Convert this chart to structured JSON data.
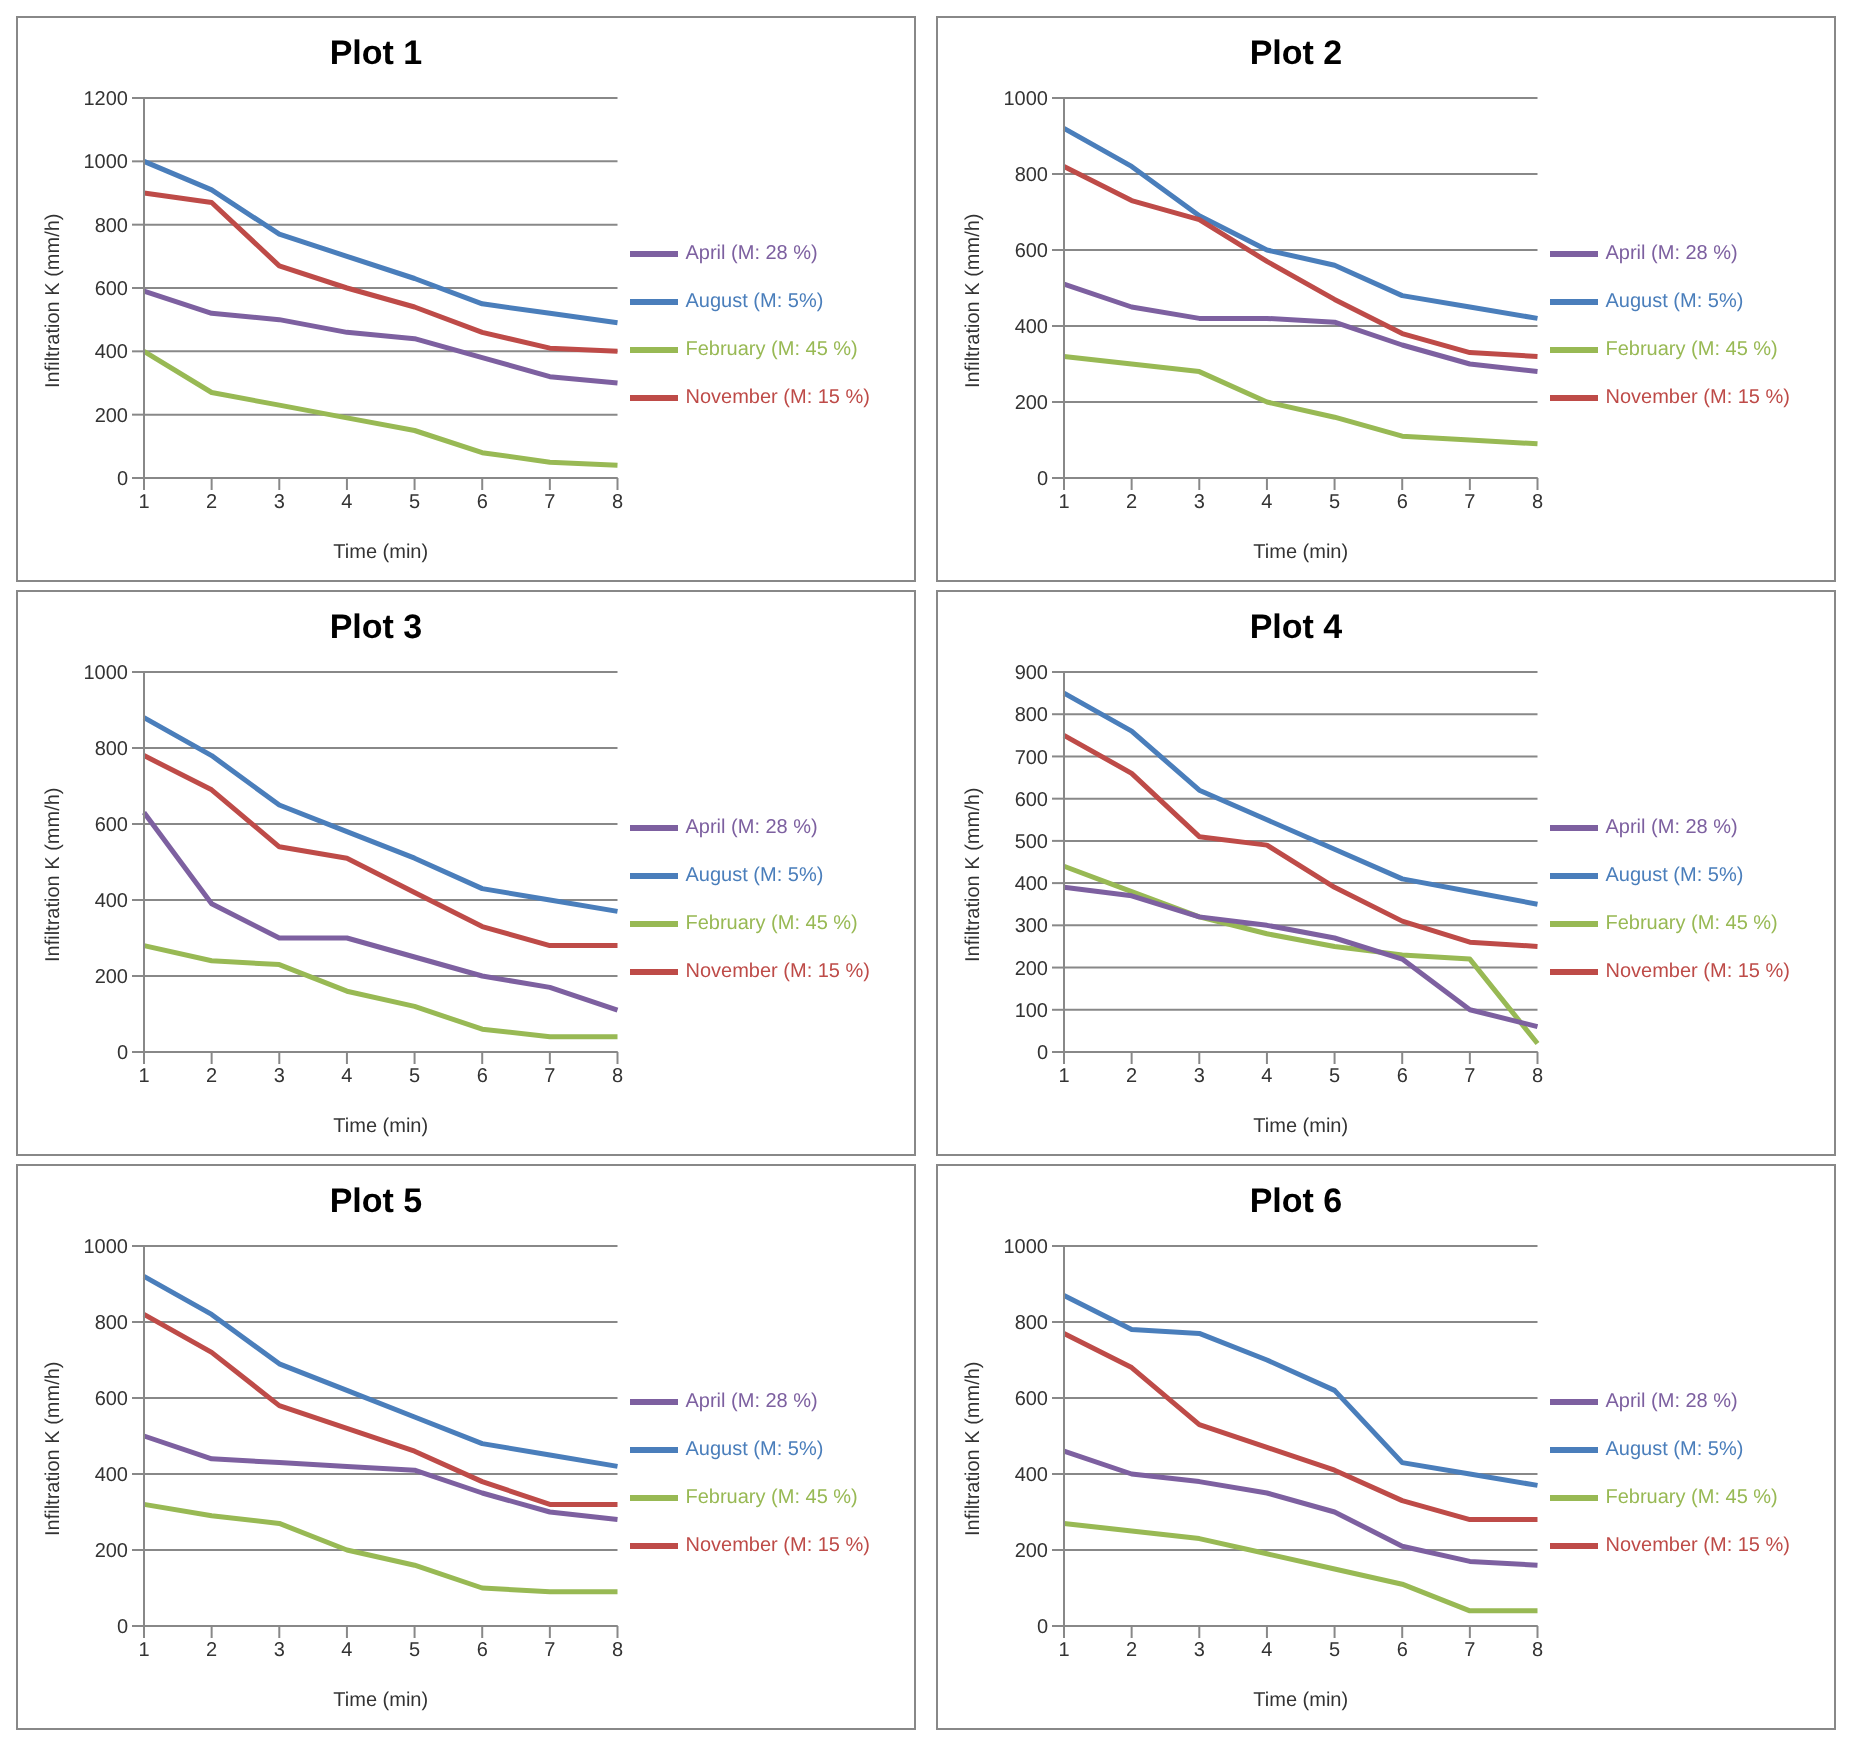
{
  "chart_data": [
    {
      "type": "line",
      "title": "Plot 1",
      "xlabel": "Time (min)",
      "ylabel": "Infiltration K (mm/h)",
      "categories": [
        "1",
        "2",
        "3",
        "4",
        "5",
        "6",
        "7",
        "8"
      ],
      "ylim": [
        0,
        1200
      ],
      "yticks": [
        0,
        200,
        400,
        600,
        800,
        1000,
        1200
      ],
      "grid": "y",
      "legend": "right",
      "series": [
        {
          "name": "August (M: 5%)",
          "color": "#4a7ebb",
          "values": [
            1000,
            910,
            770,
            700,
            630,
            550,
            520,
            490
          ]
        },
        {
          "name": "November (M: 15 %)",
          "color": "#be4b48",
          "values": [
            900,
            870,
            670,
            600,
            540,
            460,
            410,
            400
          ]
        },
        {
          "name": "February (M: 45 %)",
          "color": "#98b954",
          "values": [
            400,
            270,
            230,
            190,
            150,
            80,
            50,
            40
          ]
        },
        {
          "name": "April (M: 28 %)",
          "color": "#7d60a0",
          "values": [
            590,
            520,
            500,
            460,
            440,
            380,
            320,
            300
          ]
        }
      ]
    },
    {
      "type": "line",
      "title": "Plot 2",
      "xlabel": "Time (min)",
      "ylabel": "Infiltration K (mm/h)",
      "categories": [
        "1",
        "2",
        "3",
        "4",
        "5",
        "6",
        "7",
        "8"
      ],
      "ylim": [
        0,
        1000
      ],
      "yticks": [
        0,
        200,
        400,
        600,
        800,
        1000
      ],
      "grid": "y",
      "legend": "right",
      "series": [
        {
          "name": "August (M: 5%)",
          "color": "#4a7ebb",
          "values": [
            920,
            820,
            690,
            600,
            560,
            480,
            450,
            420
          ]
        },
        {
          "name": "November (M: 15 %)",
          "color": "#be4b48",
          "values": [
            820,
            730,
            680,
            570,
            470,
            380,
            330,
            320
          ]
        },
        {
          "name": "February (M: 45 %)",
          "color": "#98b954",
          "values": [
            320,
            300,
            280,
            200,
            160,
            110,
            100,
            90
          ]
        },
        {
          "name": "April (M: 28 %)",
          "color": "#7d60a0",
          "values": [
            510,
            450,
            420,
            420,
            410,
            350,
            300,
            280
          ]
        }
      ]
    },
    {
      "type": "line",
      "title": "Plot 3",
      "xlabel": "Time (min)",
      "ylabel": "Infiltration K (mm/h)",
      "categories": [
        "1",
        "2",
        "3",
        "4",
        "5",
        "6",
        "7",
        "8"
      ],
      "ylim": [
        0,
        1000
      ],
      "yticks": [
        0,
        200,
        400,
        600,
        800,
        1000
      ],
      "grid": "y",
      "legend": "right",
      "series": [
        {
          "name": "August (M: 5%)",
          "color": "#4a7ebb",
          "values": [
            880,
            780,
            650,
            580,
            510,
            430,
            400,
            370
          ]
        },
        {
          "name": "November (M: 15 %)",
          "color": "#be4b48",
          "values": [
            780,
            690,
            540,
            510,
            420,
            330,
            280,
            280
          ]
        },
        {
          "name": "February (M: 45 %)",
          "color": "#98b954",
          "values": [
            280,
            240,
            230,
            160,
            120,
            60,
            40,
            40
          ]
        },
        {
          "name": "April (M: 28 %)",
          "color": "#7d60a0",
          "values": [
            630,
            390,
            300,
            300,
            250,
            200,
            170,
            110
          ]
        }
      ]
    },
    {
      "type": "line",
      "title": "Plot 4",
      "xlabel": "Time (min)",
      "ylabel": "Infiltration K (mm/h)",
      "categories": [
        "1",
        "2",
        "3",
        "4",
        "5",
        "6",
        "7",
        "8"
      ],
      "ylim": [
        0,
        900
      ],
      "yticks": [
        0,
        100,
        200,
        300,
        400,
        500,
        600,
        700,
        800,
        900
      ],
      "grid": "y",
      "legend": "right",
      "series": [
        {
          "name": "August (M: 5%)",
          "color": "#4a7ebb",
          "values": [
            850,
            760,
            620,
            550,
            480,
            410,
            380,
            350
          ]
        },
        {
          "name": "November (M: 15 %)",
          "color": "#be4b48",
          "values": [
            750,
            660,
            510,
            490,
            390,
            310,
            260,
            250
          ]
        },
        {
          "name": "February (M: 45 %)",
          "color": "#98b954",
          "values": [
            440,
            380,
            320,
            280,
            250,
            230,
            220,
            20
          ]
        },
        {
          "name": "April (M: 28 %)",
          "color": "#7d60a0",
          "values": [
            390,
            370,
            320,
            300,
            270,
            220,
            100,
            60
          ]
        }
      ]
    },
    {
      "type": "line",
      "title": "Plot 5",
      "xlabel": "Time (min)",
      "ylabel": "Infiltration K (mm/h)",
      "categories": [
        "1",
        "2",
        "3",
        "4",
        "5",
        "6",
        "7",
        "8"
      ],
      "ylim": [
        0,
        1000
      ],
      "yticks": [
        0,
        200,
        400,
        600,
        800,
        1000
      ],
      "grid": "y",
      "legend": "right",
      "series": [
        {
          "name": "August (M: 5%)",
          "color": "#4a7ebb",
          "values": [
            920,
            820,
            690,
            620,
            550,
            480,
            450,
            420
          ]
        },
        {
          "name": "November (M: 15 %)",
          "color": "#be4b48",
          "values": [
            820,
            720,
            580,
            520,
            460,
            380,
            320,
            320
          ]
        },
        {
          "name": "February (M: 45 %)",
          "color": "#98b954",
          "values": [
            320,
            290,
            270,
            200,
            160,
            100,
            90,
            90
          ]
        },
        {
          "name": "April (M: 28 %)",
          "color": "#7d60a0",
          "values": [
            500,
            440,
            430,
            420,
            410,
            350,
            300,
            280
          ]
        }
      ]
    },
    {
      "type": "line",
      "title": "Plot 6",
      "xlabel": "Time (min)",
      "ylabel": "Infiltration K (mm/h)",
      "categories": [
        "1",
        "2",
        "3",
        "4",
        "5",
        "6",
        "7",
        "8"
      ],
      "ylim": [
        0,
        1000
      ],
      "yticks": [
        0,
        200,
        400,
        600,
        800,
        1000
      ],
      "grid": "y",
      "legend": "right",
      "series": [
        {
          "name": "August (M: 5%)",
          "color": "#4a7ebb",
          "values": [
            870,
            780,
            770,
            700,
            620,
            430,
            400,
            370
          ]
        },
        {
          "name": "November (M: 15 %)",
          "color": "#be4b48",
          "values": [
            770,
            680,
            530,
            470,
            410,
            330,
            280,
            280
          ]
        },
        {
          "name": "February (M: 45 %)",
          "color": "#98b954",
          "values": [
            270,
            250,
            230,
            190,
            150,
            110,
            40,
            40
          ]
        },
        {
          "name": "April (M: 28 %)",
          "color": "#7d60a0",
          "values": [
            460,
            400,
            380,
            350,
            300,
            210,
            170,
            160
          ]
        }
      ]
    }
  ]
}
